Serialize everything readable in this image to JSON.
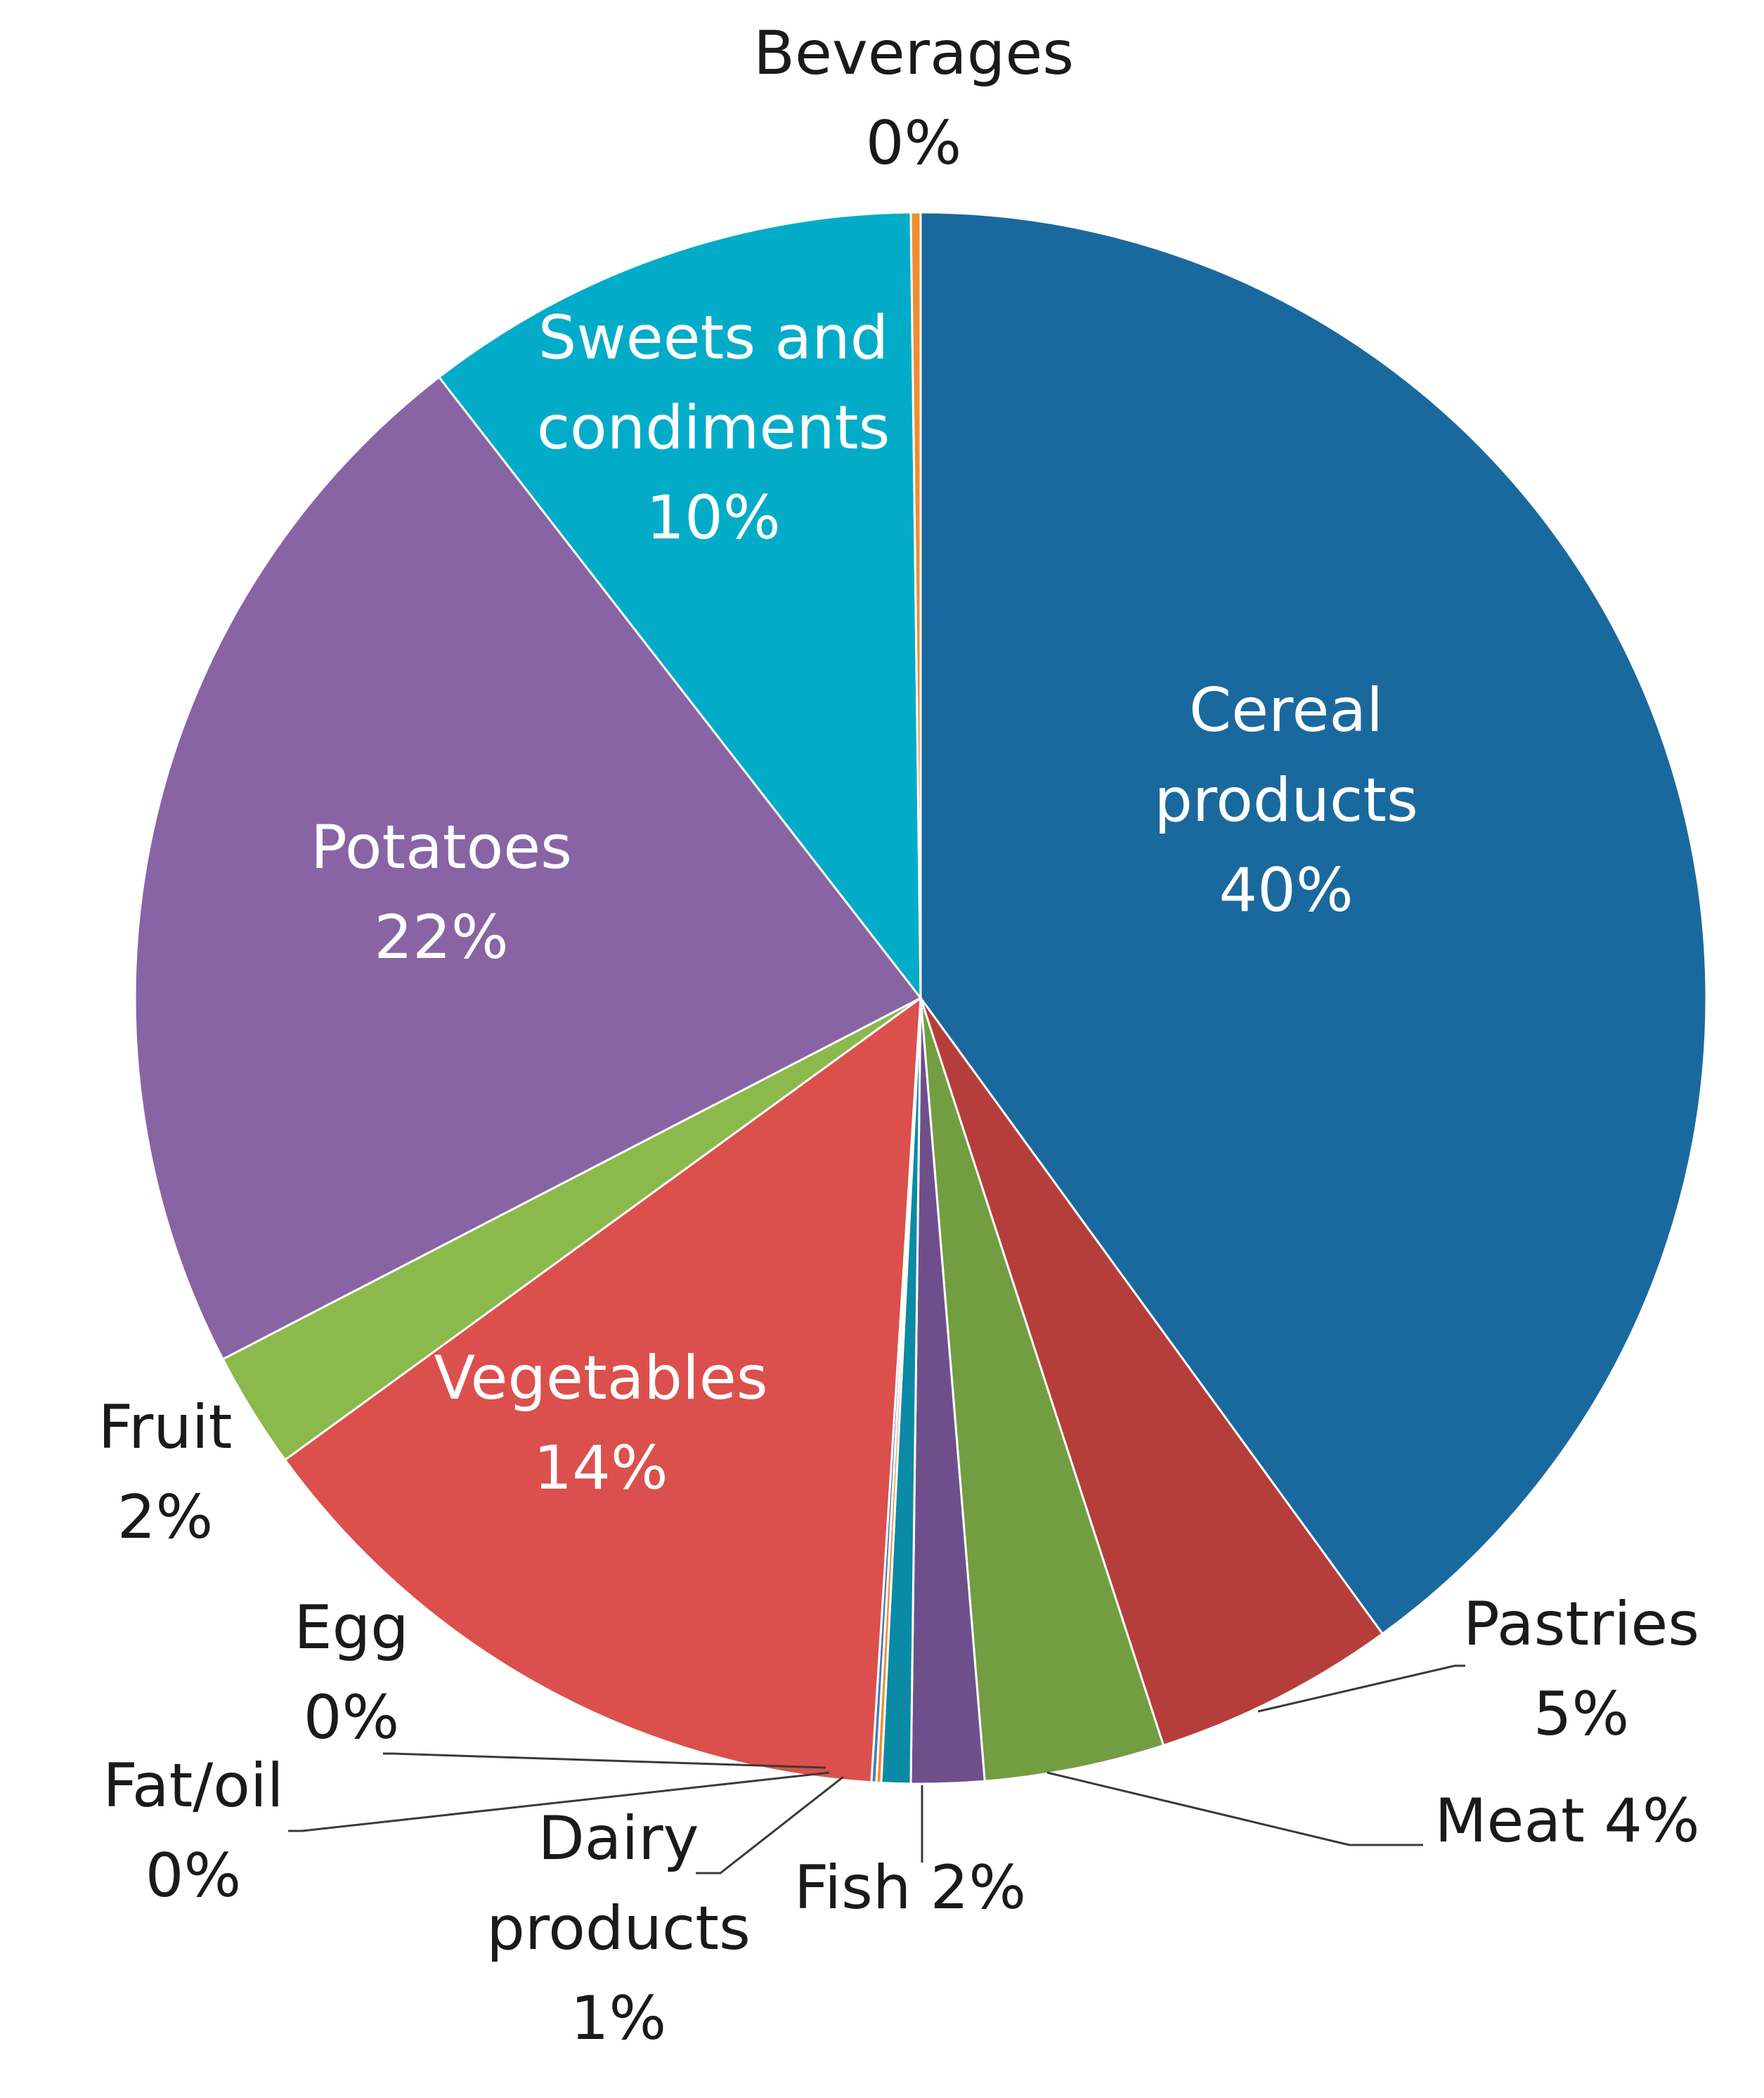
{
  "chart_data": {
    "type": "pie",
    "title": "",
    "start": "12 o'clock",
    "direction": "clockwise",
    "slices": [
      {
        "name": "Cereal products",
        "value": 40.0,
        "color": "#1A699E",
        "label_lines": [
          "Cereal",
          "products",
          "40%"
        ]
      },
      {
        "name": "Pastries",
        "value": 5.0,
        "color": "#B53E3A",
        "label_lines": [
          "Pastries",
          "5%"
        ]
      },
      {
        "name": "Meat",
        "value": 3.7,
        "color": "#739D41",
        "label_lines": [
          "Meat 4%"
        ]
      },
      {
        "name": "Fish",
        "value": 1.5,
        "color": "#6E4F8C",
        "label_lines": [
          "Fish 2%"
        ]
      },
      {
        "name": "Dairy products",
        "value": 0.6,
        "color": "#0B8AA6",
        "label_lines": [
          "Dairy",
          "products",
          "1%"
        ]
      },
      {
        "name": "Fat/oil",
        "value": 0.1,
        "color": "#EE8E30",
        "label_lines": [
          "Fat/oil",
          "0%"
        ]
      },
      {
        "name": "Egg",
        "value": 0.1,
        "color": "#4A7BB6",
        "label_lines": [
          "Egg",
          "0%"
        ]
      },
      {
        "name": "Vegetables",
        "value": 14.0,
        "color": "#DB504C",
        "label_lines": [
          "Vegetables",
          "14%"
        ]
      },
      {
        "name": "Fruit",
        "value": 2.4,
        "color": "#8BB94C",
        "label_lines": [
          "Fruit",
          "2%"
        ]
      },
      {
        "name": "Potatoes",
        "value": 22.1,
        "color": "#8964A4",
        "label_lines": [
          "Potatoes",
          "22%"
        ]
      },
      {
        "name": "Sweets and condiments",
        "value": 10.3,
        "color": "#02ACC8",
        "label_lines": [
          "Sweets and",
          "condiments",
          "10%"
        ]
      },
      {
        "name": "Beverages",
        "value": 0.2,
        "color": "#EE8E30",
        "label_lines": [
          "Beverages",
          "0%"
        ]
      }
    ]
  }
}
